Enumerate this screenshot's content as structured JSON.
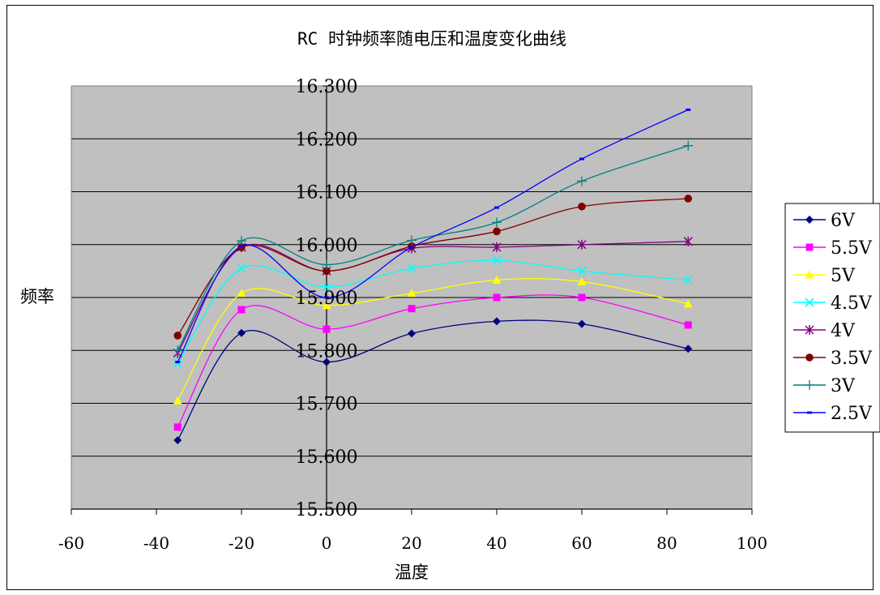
{
  "chart_data": {
    "type": "scatter",
    "title": "RC 时钟频率随电压和温度变化曲线",
    "xlabel": "温度",
    "ylabel": "频率",
    "xlim": [
      -60,
      100
    ],
    "ylim": [
      15.5,
      16.3
    ],
    "xticks": [
      "-60",
      "-40",
      "-20",
      "0",
      "20",
      "40",
      "60",
      "80",
      "100"
    ],
    "yticks": [
      "15.500",
      "15.600",
      "15.700",
      "15.800",
      "15.900",
      "16.000",
      "16.100",
      "16.200",
      "16.300"
    ],
    "x": [
      -35,
      -20,
      0,
      20,
      40,
      60,
      85
    ],
    "grid": true,
    "legend": "right",
    "plot_bg": "#c0c0c0",
    "series": [
      {
        "name": "6V",
        "color": "#000080",
        "marker": "diamond",
        "values": [
          15.63,
          15.833,
          15.778,
          15.832,
          15.855,
          15.85,
          15.803
        ]
      },
      {
        "name": "5.5V",
        "color": "#ff00ff",
        "marker": "square",
        "values": [
          15.655,
          15.877,
          15.84,
          15.879,
          15.9,
          15.9,
          15.848
        ]
      },
      {
        "name": "5V",
        "color": "#ffff00",
        "marker": "triangle",
        "values": [
          15.705,
          15.908,
          15.885,
          15.908,
          15.933,
          15.93,
          15.888
        ]
      },
      {
        "name": "4.5V",
        "color": "#00ffff",
        "marker": "x",
        "values": [
          15.775,
          15.955,
          15.92,
          15.955,
          15.97,
          15.95,
          15.933
        ]
      },
      {
        "name": "4V",
        "color": "#800080",
        "marker": "star",
        "values": [
          15.795,
          15.995,
          15.95,
          15.993,
          15.995,
          16.0,
          16.006
        ]
      },
      {
        "name": "3.5V",
        "color": "#800000",
        "marker": "circle",
        "values": [
          15.828,
          15.995,
          15.95,
          15.997,
          16.025,
          16.072,
          16.087
        ]
      },
      {
        "name": "3V",
        "color": "#008080",
        "marker": "plus",
        "values": [
          15.8,
          16.007,
          15.962,
          16.008,
          16.042,
          16.12,
          16.187
        ]
      },
      {
        "name": "2.5V",
        "color": "#0000ff",
        "marker": "dash",
        "values": [
          15.778,
          15.997,
          15.9,
          15.995,
          16.07,
          16.162,
          16.255
        ]
      }
    ]
  }
}
